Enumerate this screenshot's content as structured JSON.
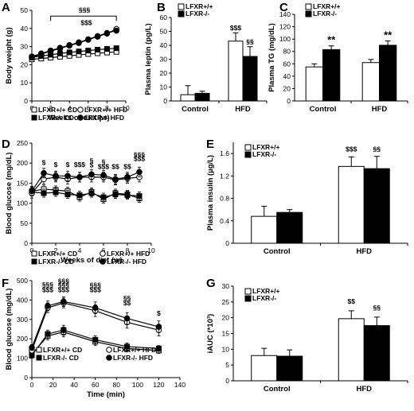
{
  "panels": [
    {
      "id": "A",
      "letter": "A",
      "type": "line",
      "xlabel": "Weeks of diet (w)",
      "ylabel": "Body weight (g)",
      "xlim": [
        0,
        10
      ],
      "ylim": [
        0,
        50
      ],
      "xticks": [
        0,
        2,
        4,
        6,
        8,
        10
      ],
      "yticks": [
        0,
        10,
        20,
        30,
        40,
        50
      ],
      "x": [
        0,
        1,
        2,
        3,
        4,
        5,
        6,
        7,
        8,
        9
      ],
      "series": [
        {
          "name": "LFXR+/+ CD",
          "marker": "open-square",
          "values": [
            23.0,
            23.4,
            23.9,
            24.4,
            24.9,
            25.4,
            25.9,
            26.3,
            26.7,
            27.1
          ],
          "errors": [
            0.6,
            0.6,
            0.6,
            0.6,
            0.6,
            0.6,
            0.7,
            0.7,
            0.7,
            0.7
          ]
        },
        {
          "name": "LFXR-/- CD",
          "marker": "filled-square",
          "values": [
            24.0,
            24.8,
            25.5,
            26.2,
            26.8,
            27.3,
            27.8,
            28.3,
            28.7,
            29.1
          ],
          "errors": [
            0.6,
            0.6,
            0.6,
            0.6,
            0.6,
            0.6,
            0.7,
            0.7,
            0.7,
            0.7
          ]
        },
        {
          "name": "LFXR+/+ HFD",
          "marker": "open-circle",
          "values": [
            24.0,
            25.8,
            27.5,
            29.0,
            30.5,
            32.0,
            33.8,
            35.5,
            37.2,
            39.7
          ],
          "errors": [
            0.6,
            0.7,
            0.8,
            0.8,
            0.9,
            0.9,
            1.0,
            1.0,
            1.1,
            1.2
          ]
        },
        {
          "name": "LFXR-/- HFD",
          "marker": "filled-circle",
          "values": [
            24.5,
            26.2,
            27.8,
            29.3,
            30.8,
            32.3,
            34.0,
            35.8,
            37.5,
            38.8
          ],
          "errors": [
            0.6,
            0.7,
            0.8,
            0.8,
            0.9,
            0.9,
            1.0,
            1.0,
            1.1,
            1.2
          ]
        }
      ],
      "annotations": [
        {
          "text": "§§§",
          "x": 5.6,
          "y": 48.8
        },
        {
          "text": "$$$",
          "x": 5.8,
          "y": 41.8
        }
      ],
      "bracket": {
        "x0": 2,
        "x1": 9,
        "y": 46.8
      }
    },
    {
      "id": "B",
      "letter": "B",
      "type": "bar",
      "ylabel": "Plasma leptin (pg/L)",
      "ylim": [
        0,
        60
      ],
      "yticks": [
        0,
        10,
        20,
        30,
        40,
        50,
        60
      ],
      "categories": [
        "Control",
        "HFD"
      ],
      "series": [
        {
          "name": "LFXR+/+",
          "fill": "white",
          "values": [
            4.5,
            43
          ],
          "errors": [
            6.5,
            6
          ]
        },
        {
          "name": "LFXR-/-",
          "fill": "black",
          "values": [
            5.5,
            32
          ],
          "errors": [
            1.5,
            7
          ]
        }
      ],
      "annotations": [
        {
          "text": "$$$",
          "cat": 1,
          "series": 0,
          "y": 51
        },
        {
          "text": "§§",
          "cat": 1,
          "series": 1,
          "y": 41
        }
      ]
    },
    {
      "id": "C",
      "letter": "C",
      "type": "bar",
      "ylabel": "Plasma TG (mg/dL)",
      "ylim": [
        0,
        140
      ],
      "yticks": [
        0,
        20,
        40,
        60,
        80,
        100,
        120,
        140
      ],
      "categories": [
        "Control",
        "HFD"
      ],
      "series": [
        {
          "name": "LFXR+/+",
          "fill": "white",
          "values": [
            55,
            62
          ],
          "errors": [
            5,
            5
          ]
        },
        {
          "name": "LFXR-/-",
          "fill": "black",
          "values": [
            83,
            90
          ],
          "errors": [
            6,
            7
          ]
        }
      ],
      "annotations": [
        {
          "text": "**",
          "cat": 0,
          "series": 1,
          "y": 93,
          "big": true
        },
        {
          "text": "**",
          "cat": 1,
          "series": 1,
          "y": 101,
          "big": true
        }
      ]
    },
    {
      "id": "D",
      "letter": "D",
      "type": "line",
      "xlabel": "Weeks of diet (w)",
      "ylabel": "Blood glucose (mg/dL)",
      "xlim": [
        0,
        10
      ],
      "ylim": [
        0,
        250
      ],
      "xticks": [
        0,
        2,
        4,
        6,
        8,
        10
      ],
      "yticks": [
        0,
        50,
        100,
        150,
        200,
        250
      ],
      "x": [
        0,
        1,
        2,
        3,
        4,
        5,
        6,
        7,
        8,
        9
      ],
      "series": [
        {
          "name": "LFXR+/+ CD",
          "marker": "open-square",
          "values": [
            130,
            135,
            133,
            130,
            115,
            128,
            110,
            125,
            122,
            112
          ],
          "errors": [
            10,
            10,
            10,
            10,
            10,
            10,
            10,
            10,
            10,
            10
          ]
        },
        {
          "name": "LFXR-/- CD",
          "marker": "filled-square",
          "values": [
            128,
            125,
            127,
            122,
            120,
            125,
            115,
            122,
            120,
            118
          ],
          "errors": [
            10,
            10,
            10,
            10,
            10,
            10,
            10,
            10,
            10,
            10
          ]
        },
        {
          "name": "LFXR+/+ HFD",
          "marker": "open-circle",
          "values": [
            125,
            160,
            165,
            160,
            165,
            165,
            165,
            158,
            162,
            165
          ],
          "errors": [
            12,
            12,
            12,
            12,
            12,
            12,
            12,
            12,
            12,
            12
          ]
        },
        {
          "name": "LFXR-/- HFD",
          "marker": "filled-circle",
          "values": [
            130,
            175,
            168,
            168,
            165,
            172,
            170,
            160,
            165,
            178
          ],
          "errors": [
            12,
            12,
            12,
            12,
            12,
            12,
            12,
            12,
            12,
            12
          ]
        }
      ],
      "annotations": [
        {
          "text": "$",
          "x": 1,
          "y": 195
        },
        {
          "text": "$",
          "x": 2,
          "y": 190
        },
        {
          "text": "$",
          "x": 3,
          "y": 190
        },
        {
          "text": "$$$",
          "x": 4,
          "y": 190
        },
        {
          "text": "§",
          "x": 5,
          "y": 200
        },
        {
          "text": "$",
          "x": 5,
          "y": 189
        },
        {
          "text": "§",
          "x": 6,
          "y": 197
        },
        {
          "text": "$$$",
          "x": 6,
          "y": 186
        },
        {
          "text": "$$",
          "x": 7,
          "y": 186
        },
        {
          "text": "$$",
          "x": 8,
          "y": 186
        },
        {
          "text": "§§§",
          "x": 9,
          "y": 215
        },
        {
          "text": "$$$",
          "x": 9,
          "y": 205
        }
      ]
    },
    {
      "id": "E",
      "letter": "E",
      "type": "bar",
      "ylabel": "Plasma insulin (µg/L)",
      "ylim": [
        0,
        1.8
      ],
      "yticks": [
        0,
        0.4,
        0.8,
        1.2,
        1.6
      ],
      "ytick_labels": [
        "0",
        "0.4",
        "0.8",
        "1.2",
        "1.6"
      ],
      "categories": [
        "Control",
        "HFD"
      ],
      "series": [
        {
          "name": "LFXR+/+",
          "fill": "white",
          "values": [
            0.48,
            1.37
          ],
          "errors": [
            0.18,
            0.17
          ]
        },
        {
          "name": "LFXR-/-",
          "fill": "black",
          "values": [
            0.55,
            1.33
          ],
          "errors": [
            0.05,
            0.22
          ]
        }
      ],
      "annotations": [
        {
          "text": "$$$",
          "cat": 1,
          "series": 0,
          "y": 1.64
        },
        {
          "text": "§§",
          "cat": 1,
          "series": 1,
          "y": 1.64
        }
      ]
    },
    {
      "id": "F",
      "letter": "F",
      "type": "line",
      "xlabel": "Time (min)",
      "ylabel": "Blood glucose (mg/dL)",
      "xlim": [
        0,
        140
      ],
      "ylim": [
        0,
        500
      ],
      "xticks": [
        0,
        20,
        40,
        60,
        80,
        100,
        120,
        140
      ],
      "yticks": [
        0,
        100,
        200,
        300,
        400,
        500
      ],
      "x": [
        0,
        15,
        30,
        60,
        90,
        120
      ],
      "series": [
        {
          "name": "LFXR+/+ CD",
          "marker": "open-square",
          "values": [
            120,
            215,
            235,
            185,
            150,
            140
          ],
          "errors": [
            15,
            20,
            25,
            20,
            18,
            15
          ]
        },
        {
          "name": "LFXR-/- CD",
          "marker": "filled-square",
          "values": [
            115,
            225,
            245,
            195,
            160,
            150
          ],
          "errors": [
            15,
            20,
            25,
            20,
            18,
            15
          ]
        },
        {
          "name": "LFXR+/+ HFD",
          "marker": "open-circle",
          "values": [
            140,
            360,
            385,
            345,
            285,
            245
          ],
          "errors": [
            15,
            25,
            25,
            30,
            30,
            30
          ]
        },
        {
          "name": "LFXR-/- HFD",
          "marker": "filled-circle",
          "values": [
            155,
            370,
            392,
            360,
            305,
            262
          ],
          "errors": [
            15,
            25,
            25,
            30,
            30,
            30
          ]
        }
      ],
      "annotations": [
        {
          "text": "§§§",
          "x": 15,
          "y": 468
        },
        {
          "text": "$$$",
          "x": 15,
          "y": 440
        },
        {
          "text": "§§§",
          "x": 30,
          "y": 486
        },
        {
          "text": "§§§",
          "x": 30,
          "y": 466
        },
        {
          "text": "$$$",
          "x": 30,
          "y": 440
        },
        {
          "text": "§§§",
          "x": 60,
          "y": 466
        },
        {
          "text": "$$$",
          "x": 60,
          "y": 440
        },
        {
          "text": "§§",
          "x": 90,
          "y": 398
        },
        {
          "text": "$$",
          "x": 90,
          "y": 372
        },
        {
          "text": "$",
          "x": 120,
          "y": 320
        }
      ]
    },
    {
      "id": "G",
      "letter": "G",
      "type": "bar",
      "ylabel": "iAUC (*10³)",
      "ylim": [
        0,
        30
      ],
      "yticks": [
        0,
        5,
        10,
        15,
        20,
        25,
        30
      ],
      "categories": [
        "Control",
        "HFD"
      ],
      "series": [
        {
          "name": "LFXR+/+",
          "fill": "white",
          "values": [
            8,
            19.7
          ],
          "errors": [
            2.3,
            2.5
          ]
        },
        {
          "name": "LFXR-/-",
          "fill": "black",
          "values": [
            7.8,
            17.5
          ],
          "errors": [
            2,
            2.7
          ]
        }
      ],
      "annotations": [
        {
          "text": "$$",
          "cat": 1,
          "series": 0,
          "y": 24.5
        },
        {
          "text": "§§",
          "cat": 1,
          "series": 1,
          "y": 22.5
        }
      ]
    }
  ]
}
